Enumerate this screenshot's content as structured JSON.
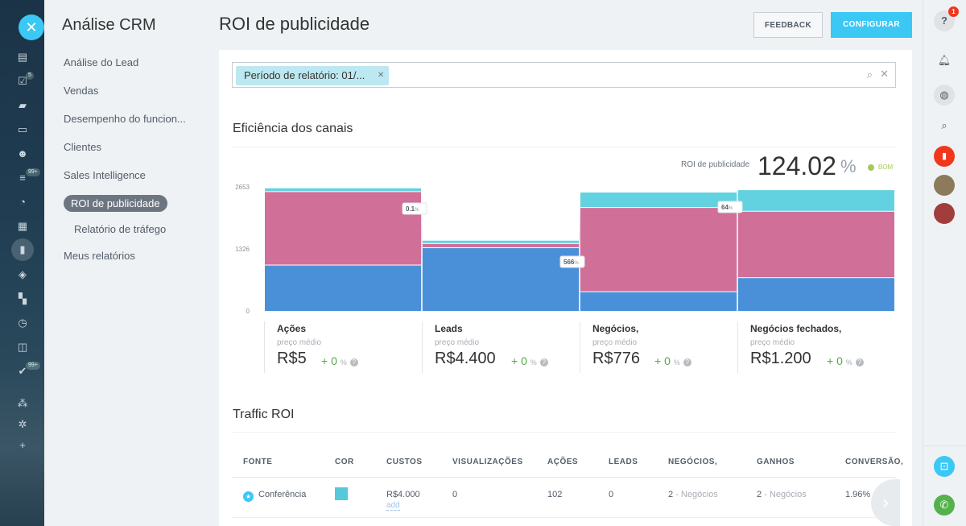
{
  "sidebar": {
    "title": "Análise CRM",
    "items": [
      {
        "label": "Análise do Lead"
      },
      {
        "label": "Vendas"
      },
      {
        "label": "Desempenho do funcion..."
      },
      {
        "label": "Clientes"
      },
      {
        "label": "Sales Intelligence"
      },
      {
        "label": "ROI de publicidade"
      },
      {
        "label": "Relatório de tráfego"
      },
      {
        "label": "Meus relatórios"
      }
    ]
  },
  "rail": {
    "badges": [
      "5",
      "99+",
      "99+"
    ]
  },
  "header": {
    "title": "ROI de publicidade",
    "feedback_label": "FEEDBACK",
    "configure_label": "CONFIGURAR"
  },
  "right_rail": {
    "help_count": "1"
  },
  "filter": {
    "chip_label": "Período de relatório: 01/..."
  },
  "efficiency": {
    "title": "Eficiência dos canais",
    "roi_label": "ROI de publicidade",
    "roi_value": "124.02",
    "roi_unit": "%",
    "roi_status": "BOM"
  },
  "chart_data": {
    "type": "bar",
    "stacked": true,
    "y_ticks": [
      "2653",
      "1326",
      "0"
    ],
    "ylim": [
      0,
      2653
    ],
    "categories": [
      "Ações",
      "Leads",
      "Negócios,",
      "Negócios fechados,"
    ],
    "series": [
      {
        "color": "#4a90d9",
        "values": [
          990,
          1360,
          420,
          720
        ]
      },
      {
        "color": "#d06f97",
        "values": [
          1570,
          90,
          1800,
          1420
        ]
      },
      {
        "color": "#63d2e0",
        "values": [
          80,
          70,
          330,
          460
        ]
      }
    ],
    "conversion_labels": [
      {
        "value": "0.1",
        "unit": "%"
      },
      {
        "value": "566",
        "unit": "%"
      },
      {
        "value": "64",
        "unit": "%"
      }
    ]
  },
  "stages": [
    {
      "name": "Ações",
      "avg_label": "preço médio",
      "price": "R$5",
      "change": "+ 0",
      "unit": "%"
    },
    {
      "name": "Leads",
      "avg_label": "preço médio",
      "price": "R$4.400",
      "change": "+ 0",
      "unit": "%"
    },
    {
      "name": "Negócios,",
      "avg_label": "preço médio",
      "price": "R$776",
      "change": "+ 0",
      "unit": "%"
    },
    {
      "name": "Negócios fechados,",
      "avg_label": "preço médio",
      "price": "R$1.200",
      "change": "+ 0",
      "unit": "%"
    }
  ],
  "traffic": {
    "title": "Traffic ROI",
    "columns": [
      "FONTE",
      "COR",
      "CUSTOS",
      "VISUALIZAÇÕES",
      "AÇÕES",
      "LEADS",
      "NEGÓCIOS,",
      "GANHOS",
      "CONVERSÃO,"
    ],
    "rows": [
      {
        "source": "Conferência",
        "color": "#56c8dc",
        "cost": "R$4.000",
        "add_label": "add",
        "views": "0",
        "actions": "102",
        "leads": "0",
        "deals_count": "2",
        "deals_suffix": "- Negócios",
        "won_count": "2",
        "won_suffix": "- Negócios",
        "conversion": "1.96%"
      }
    ]
  }
}
